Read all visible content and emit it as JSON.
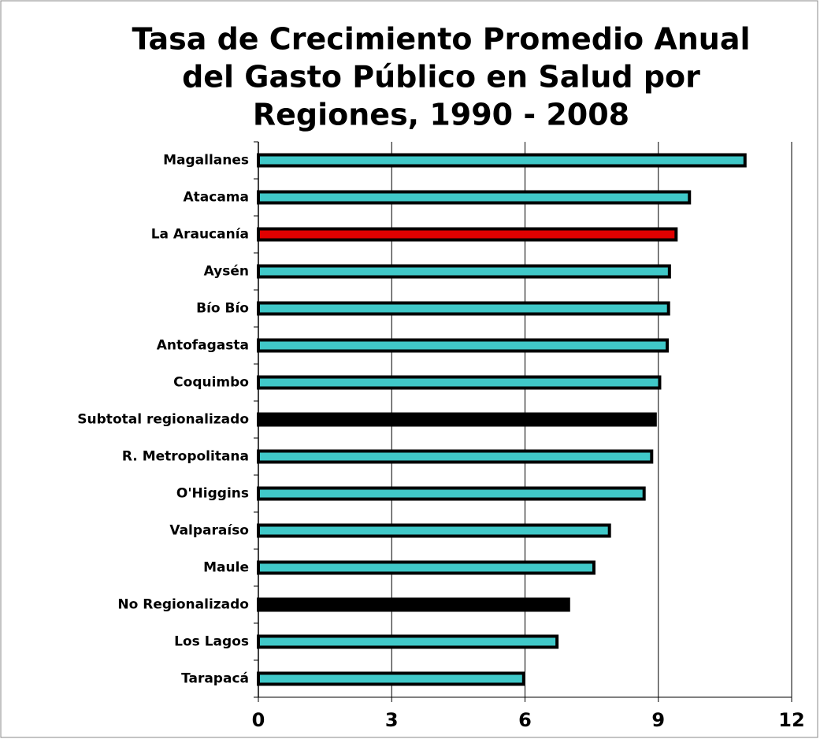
{
  "chart_data": {
    "type": "hbar",
    "title": [
      "Tasa de Crecimiento Promedio Anual",
      "del Gasto Público en Salud por",
      "Regiones, 1990 - 2008"
    ],
    "categories": [
      "Magallanes",
      "Atacama",
      "La Araucanía",
      "Aysén",
      "Bío Bío",
      "Antofagasta",
      "Coquimbo",
      "Subtotal regionalizado",
      "R. Metropolitana",
      "O'Higgins",
      "Valparaíso",
      "Maule",
      "No Regionalizado",
      "Los Lagos",
      "Tarapacá"
    ],
    "values": [
      10.95,
      9.7,
      9.4,
      9.25,
      9.23,
      9.2,
      9.03,
      8.93,
      8.85,
      8.68,
      7.9,
      7.55,
      6.98,
      6.72,
      5.97
    ],
    "colors": [
      "#40c8c8",
      "#40c8c8",
      "#e00000",
      "#40c8c8",
      "#40c8c8",
      "#40c8c8",
      "#40c8c8",
      "#000000",
      "#40c8c8",
      "#40c8c8",
      "#40c8c8",
      "#40c8c8",
      "#000000",
      "#40c8c8",
      "#40c8c8"
    ],
    "xlim": [
      0,
      12
    ],
    "xticks": [
      0,
      3,
      6,
      9,
      12
    ],
    "grid": true
  }
}
